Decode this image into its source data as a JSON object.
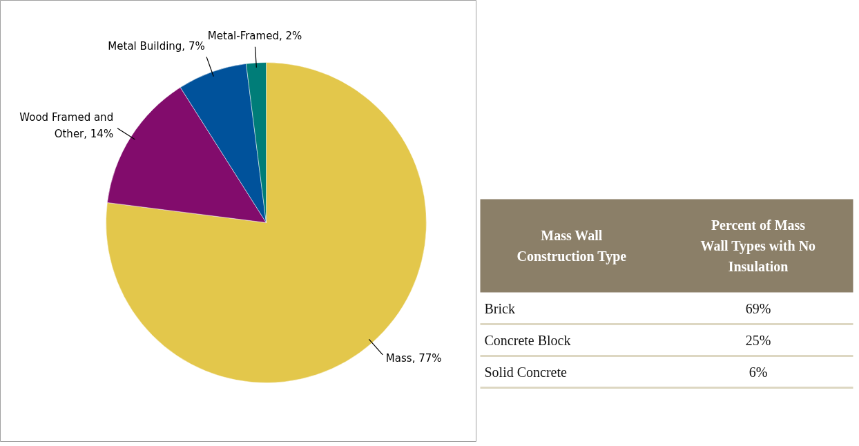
{
  "chart_data": [
    {
      "type": "pie",
      "categories": [
        "Mass",
        "Wood Framed and Other",
        "Metal Building",
        "Metal-Framed"
      ],
      "values": [
        77,
        14,
        7,
        2
      ],
      "colors": [
        "#e3c74b",
        "#820c6c",
        "#00529b",
        "#007d78"
      ],
      "value_labels": [
        "77%",
        "14%",
        "7%",
        "2%"
      ]
    },
    {
      "type": "other",
      "annotations": [
        "Mass Wall Construction Type",
        "Percent of Mass Wall Types with No Insulation"
      ],
      "categories": [
        "Brick",
        "Concrete Block",
        "Solid Concrete"
      ],
      "value_labels": [
        "69%",
        "25%",
        "6%"
      ]
    }
  ]
}
